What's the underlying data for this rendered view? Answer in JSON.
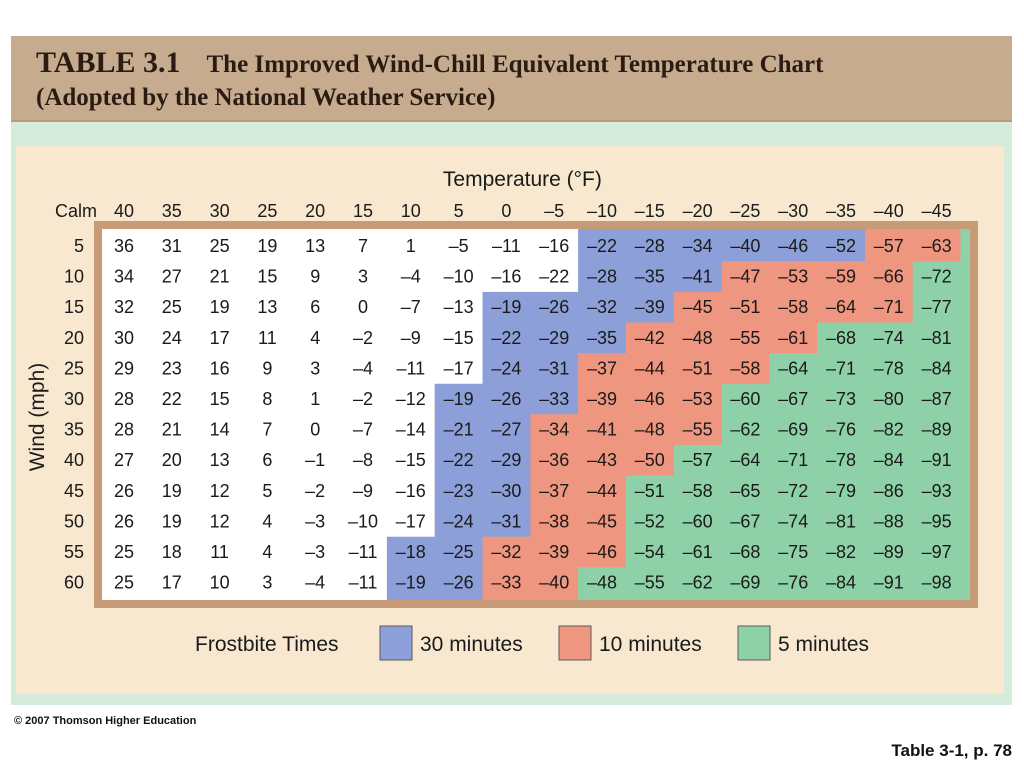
{
  "title": {
    "table_number": "TABLE 3.1",
    "heading": "The Improved Wind-Chill Equivalent Temperature Chart",
    "subheading": "(Adopted by the National Weather Service)"
  },
  "footer": {
    "copyright": "© 2007 Thomson Higher Education",
    "page_ref": "Table 3-1, p. 78"
  },
  "colors": {
    "thirty_minutes": "#8d9fd8",
    "ten_minutes": "#ee967f",
    "five_minutes": "#8ed1a8",
    "frame": "#c79a78",
    "panel": "#f8e8cf",
    "table_bg": "#ffffff"
  },
  "chart_data": {
    "type": "table",
    "title": "Temperature (°F)",
    "ylabel": "Wind (mph)",
    "calm_label": "Calm",
    "temperature_labels": [
      "40",
      "35",
      "30",
      "25",
      "20",
      "15",
      "10",
      "5",
      "0",
      "–5",
      "–10",
      "–15",
      "–20",
      "–25",
      "–30",
      "–35",
      "–40",
      "–45"
    ],
    "wind_labels": [
      "5",
      "10",
      "15",
      "20",
      "25",
      "30",
      "35",
      "40",
      "45",
      "50",
      "55",
      "60"
    ],
    "rows": [
      [
        "36",
        "31",
        "25",
        "19",
        "13",
        "7",
        "1",
        "–5",
        "–11",
        "–16",
        "–22",
        "–28",
        "–34",
        "–40",
        "–46",
        "–52",
        "–57",
        "–63"
      ],
      [
        "34",
        "27",
        "21",
        "15",
        "9",
        "3",
        "–4",
        "–10",
        "–16",
        "–22",
        "–28",
        "–35",
        "–41",
        "–47",
        "–53",
        "–59",
        "–66",
        "–72"
      ],
      [
        "32",
        "25",
        "19",
        "13",
        "6",
        "0",
        "–7",
        "–13",
        "–19",
        "–26",
        "–32",
        "–39",
        "–45",
        "–51",
        "–58",
        "–64",
        "–71",
        "–77"
      ],
      [
        "30",
        "24",
        "17",
        "11",
        "4",
        "–2",
        "–9",
        "–15",
        "–22",
        "–29",
        "–35",
        "–42",
        "–48",
        "–55",
        "–61",
        "–68",
        "–74",
        "–81"
      ],
      [
        "29",
        "23",
        "16",
        "9",
        "3",
        "–4",
        "–11",
        "–17",
        "–24",
        "–31",
        "–37",
        "–44",
        "–51",
        "–58",
        "–64",
        "–71",
        "–78",
        "–84"
      ],
      [
        "28",
        "22",
        "15",
        "8",
        "1",
        "–2",
        "–12",
        "–19",
        "–26",
        "–33",
        "–39",
        "–46",
        "–53",
        "–60",
        "–67",
        "–73",
        "–80",
        "–87"
      ],
      [
        "28",
        "21",
        "14",
        "7",
        "0",
        "–7",
        "–14",
        "–21",
        "–27",
        "–34",
        "–41",
        "–48",
        "–55",
        "–62",
        "–69",
        "–76",
        "–82",
        "–89"
      ],
      [
        "27",
        "20",
        "13",
        "6",
        "–1",
        "–8",
        "–15",
        "–22",
        "–29",
        "–36",
        "–43",
        "–50",
        "–57",
        "–64",
        "–71",
        "–78",
        "–84",
        "–91"
      ],
      [
        "26",
        "19",
        "12",
        "5",
        "–2",
        "–9",
        "–16",
        "–23",
        "–30",
        "–37",
        "–44",
        "–51",
        "–58",
        "–65",
        "–72",
        "–79",
        "–86",
        "–93"
      ],
      [
        "26",
        "19",
        "12",
        "4",
        "–3",
        "–10",
        "–17",
        "–24",
        "–31",
        "–38",
        "–45",
        "–52",
        "–60",
        "–67",
        "–74",
        "–81",
        "–88",
        "–95"
      ],
      [
        "25",
        "18",
        "11",
        "4",
        "–3",
        "–11",
        "–18",
        "–25",
        "–32",
        "–39",
        "–46",
        "–54",
        "–61",
        "–68",
        "–75",
        "–82",
        "–89",
        "–97"
      ],
      [
        "25",
        "17",
        "10",
        "3",
        "–4",
        "–11",
        "–19",
        "–26",
        "–33",
        "–40",
        "–48",
        "–55",
        "–62",
        "–69",
        "–76",
        "–84",
        "–91",
        "–98"
      ]
    ],
    "frostbite_zones": {
      "thirty_minutes_first_column": [
        10,
        10,
        8,
        8,
        8,
        7,
        7,
        7,
        7,
        7,
        6,
        6
      ],
      "ten_minutes_first_column": [
        16,
        13,
        12,
        11,
        10,
        10,
        9,
        9,
        9,
        9,
        8,
        8
      ],
      "five_minutes_first_column": [
        18,
        17,
        17,
        15,
        14,
        13,
        13,
        12,
        11,
        11,
        11,
        10
      ]
    },
    "legend": {
      "title": "Frostbite Times",
      "items": [
        "30 minutes",
        "10 minutes",
        "5 minutes"
      ]
    }
  }
}
